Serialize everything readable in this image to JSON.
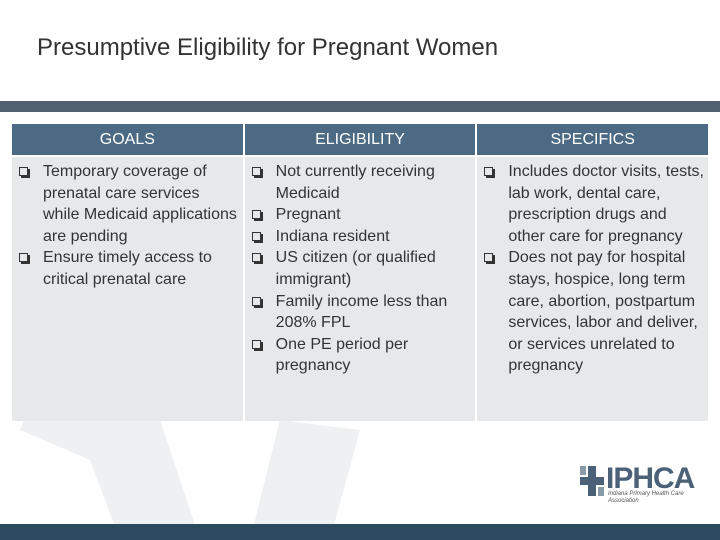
{
  "title": "Presumptive Eligibility for Pregnant Women",
  "table": {
    "columns": [
      {
        "header": "GOALS",
        "items": [
          "Temporary coverage of prenatal care services while Medicaid applications are pending",
          "Ensure timely access to critical prenatal care"
        ]
      },
      {
        "header": "ELIGIBILITY",
        "items": [
          "Not currently receiving Medicaid",
          "Pregnant",
          "Indiana resident",
          "US citizen (or qualified immigrant)",
          "Family income less than 208% FPL",
          "One PE period per pregnancy"
        ]
      },
      {
        "header": "SPECIFICS",
        "items": [
          "Includes doctor visits, tests, lab work, dental care, prescription drugs and other care for pregnancy",
          "Does not pay for hospital stays, hospice, long term care, abortion, postpartum services, labor and deliver, or services unrelated to pregnancy"
        ]
      }
    ]
  },
  "logo": {
    "name": "IPHCA",
    "tagline": "Indiana Primary Health Care Association"
  }
}
